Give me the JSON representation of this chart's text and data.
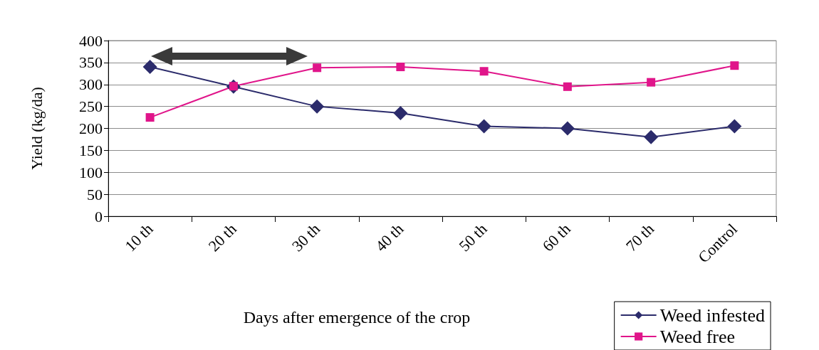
{
  "chart_data": {
    "type": "line",
    "xlabel": "Days after emergence of the crop",
    "ylabel": "Yield (kg/da)",
    "categories": [
      "10 th",
      "20 th",
      "30 th",
      "40 th",
      "50 th",
      "60 th",
      "70 th",
      "Control"
    ],
    "series": [
      {
        "name": "Weed infested",
        "color": "#2b2b6b",
        "marker": "diamond",
        "values": [
          340,
          295,
          250,
          235,
          205,
          200,
          180,
          205
        ]
      },
      {
        "name": "Weed free",
        "color": "#e0158a",
        "marker": "square",
        "values": [
          225,
          296,
          338,
          340,
          330,
          295,
          305,
          343
        ]
      }
    ],
    "ylim": [
      0,
      400
    ],
    "yticks": [
      0,
      50,
      100,
      150,
      200,
      250,
      300,
      350,
      400
    ],
    "grid": "y",
    "legend": "bottom right",
    "line_style": "solid"
  }
}
